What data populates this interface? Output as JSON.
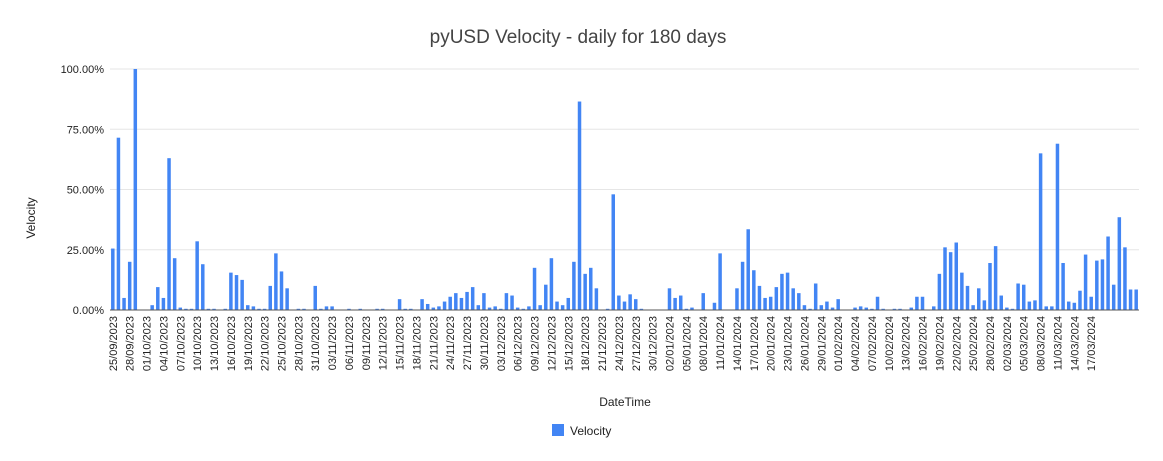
{
  "chart_data": {
    "type": "bar",
    "title": "pyUSD Velocity - daily for 180 days",
    "xlabel": "DateTime",
    "ylabel": "Velocity",
    "ylim": [
      0,
      100
    ],
    "y_ticks": [
      0,
      25,
      50,
      75,
      100
    ],
    "y_tick_labels": [
      "0.00%",
      "25.00%",
      "50.00%",
      "75.00%",
      "100.00%"
    ],
    "grid": true,
    "legend": {
      "position": "bottom",
      "entries": [
        "Velocity"
      ]
    },
    "colors": {
      "bar": "#4285f4"
    },
    "x_tick_labels": [
      "25/09/2023",
      "28/09/2023",
      "01/10/2023",
      "04/10/2023",
      "07/10/2023",
      "10/10/2023",
      "13/10/2023",
      "16/10/2023",
      "19/10/2023",
      "22/10/2023",
      "25/10/2023",
      "28/10/2023",
      "31/10/2023",
      "03/11/2023",
      "06/11/2023",
      "09/11/2023",
      "12/11/2023",
      "15/11/2023",
      "18/11/2023",
      "21/11/2023",
      "24/11/2023",
      "27/11/2023",
      "30/11/2023",
      "03/12/2023",
      "06/12/2023",
      "09/12/2023",
      "12/12/2023",
      "15/12/2023",
      "18/12/2023",
      "21/12/2023",
      "24/12/2023",
      "27/12/2023",
      "30/12/2023",
      "02/01/2024",
      "05/01/2024",
      "08/01/2024",
      "11/01/2024",
      "14/01/2024",
      "17/01/2024",
      "20/01/2024",
      "23/01/2024",
      "26/01/2024",
      "29/01/2024",
      "01/02/2024",
      "04/02/2024",
      "07/02/2024",
      "10/02/2024",
      "13/02/2024",
      "16/02/2024",
      "19/02/2024",
      "22/02/2024",
      "25/02/2024",
      "28/02/2024",
      "02/03/2024",
      "05/03/2024",
      "08/03/2024",
      "11/03/2024",
      "14/03/2024",
      "17/03/2024"
    ],
    "series": [
      {
        "name": "Velocity",
        "values": [
          25.5,
          71.5,
          5,
          20,
          100,
          0,
          0,
          2,
          9.5,
          5,
          63,
          21.5,
          1,
          0.5,
          0.5,
          28.5,
          19,
          0.5,
          0.5,
          0,
          0.5,
          15.5,
          14.5,
          12.5,
          2,
          1.5,
          0.5,
          0.5,
          10,
          23.5,
          16,
          9,
          0,
          0.5,
          0.5,
          0,
          10,
          0.5,
          1.5,
          1.5,
          0,
          0,
          0.5,
          0,
          0.5,
          0,
          0,
          0.5,
          0.5,
          0,
          0,
          4.5,
          0.5,
          0.5,
          0,
          4.5,
          2.5,
          1,
          1.5,
          3.5,
          5.5,
          7,
          5,
          7.5,
          9.5,
          2,
          7,
          1,
          1.5,
          0.5,
          7,
          6,
          1,
          0.5,
          1.5,
          17.5,
          2,
          10.5,
          21.5,
          3.5,
          2,
          5,
          20,
          86.5,
          15,
          17.5,
          9,
          0,
          0.5,
          48,
          6,
          3.5,
          6.5,
          4.5,
          0.5,
          0,
          0,
          0,
          0,
          9,
          5,
          6,
          0.5,
          1,
          0,
          7,
          0,
          3,
          23.5,
          0,
          0,
          9,
          20,
          33.5,
          16.5,
          10,
          5,
          5.5,
          9.5,
          15,
          15.5,
          9,
          7,
          2,
          0.5,
          11,
          2,
          3.5,
          1,
          4.5,
          0,
          0,
          1,
          1.5,
          1,
          0.5,
          5.5,
          0.5,
          0,
          0.5,
          0.5,
          0,
          1,
          5.5,
          5.5,
          0,
          1.5,
          15,
          26,
          24,
          28,
          15.5,
          10,
          2,
          9,
          4,
          19.5,
          26.5,
          6,
          1,
          0.5,
          11,
          10.5,
          3.5,
          4,
          65,
          1.5,
          1.5,
          69,
          19.5,
          3.5,
          3,
          8,
          23,
          5.5,
          20.5,
          21,
          30.5,
          10.5,
          38.5,
          26,
          8.5,
          8.5
        ]
      }
    ]
  }
}
